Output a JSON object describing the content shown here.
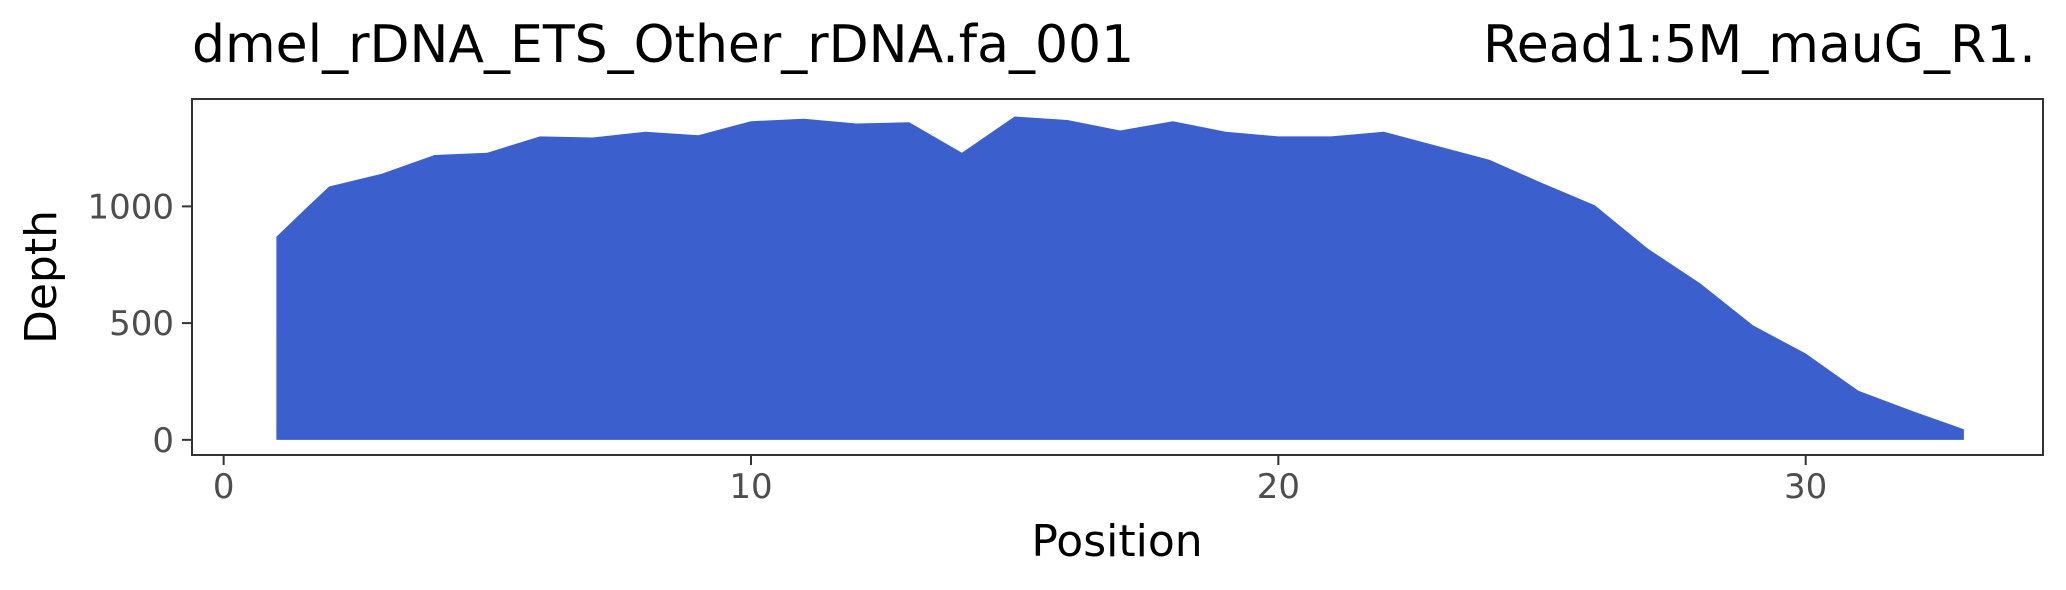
{
  "chart_data": {
    "type": "area",
    "title_left": "dmel_rDNA_ETS_Other_rDNA.fa_001",
    "title_right": "Read1:5M_mauG_R1.",
    "xlabel": "Position",
    "ylabel": "Depth",
    "xlim": [
      -0.6,
      34.5
    ],
    "ylim": [
      -65,
      1460
    ],
    "x_ticks": [
      0,
      10,
      20,
      30
    ],
    "x_tick_labels": [
      "0",
      "10",
      "20",
      "30"
    ],
    "y_ticks": [
      0,
      500,
      1000
    ],
    "y_tick_labels": [
      "0",
      "500",
      "1000"
    ],
    "grid": false,
    "fill_color": "#3b5fcd",
    "series": [
      {
        "x": [
          1,
          1.6,
          2,
          3,
          4,
          5,
          6,
          7,
          8,
          9,
          10,
          11,
          12,
          13,
          14,
          15,
          16,
          17,
          18,
          19,
          20,
          21,
          22,
          23,
          24,
          25,
          26,
          27,
          28,
          29,
          30,
          31,
          32,
          33
        ],
        "values": [
          870,
          1000,
          1085,
          1140,
          1220,
          1230,
          1300,
          1295,
          1320,
          1305,
          1365,
          1375,
          1355,
          1360,
          1230,
          1385,
          1370,
          1325,
          1365,
          1320,
          1300,
          1300,
          1320,
          1260,
          1200,
          1100,
          1005,
          820,
          670,
          490,
          370,
          210,
          125,
          45
        ]
      }
    ]
  }
}
